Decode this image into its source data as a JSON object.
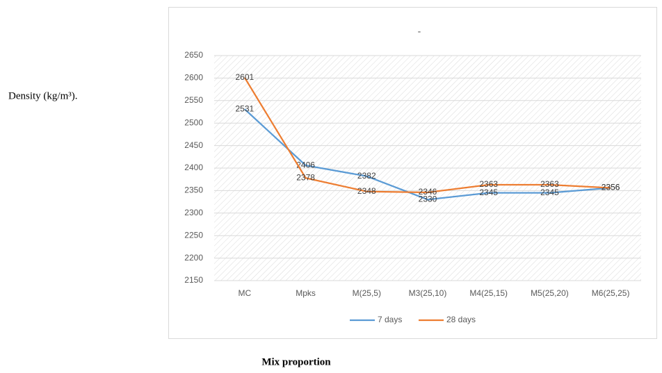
{
  "chart_data": {
    "type": "line",
    "title": "-",
    "y_label": "Density (kg/m³).",
    "x_label": "Mix proportion",
    "categories": [
      "MC",
      "Mpks",
      "M(25,5)",
      "M3(25,10)",
      "M4(25,15)",
      "M5(25,20)",
      "M6(25,25)"
    ],
    "series": [
      {
        "name": "7 days",
        "color": "#5b9bd5",
        "values": [
          2531,
          2406,
          2382,
          2330,
          2345,
          2345,
          2356
        ]
      },
      {
        "name": "28 days",
        "color": "#ed7d31",
        "values": [
          2601,
          2378,
          2348,
          2346,
          2363,
          2363,
          2356
        ]
      }
    ],
    "ylim": [
      2150,
      2650
    ],
    "yticks": [
      2150,
      2200,
      2250,
      2300,
      2350,
      2400,
      2450,
      2500,
      2550,
      2600,
      2650
    ],
    "grid": true,
    "legend": "bottom"
  }
}
